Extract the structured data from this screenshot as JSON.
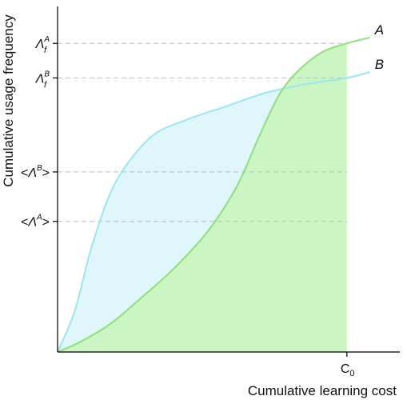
{
  "chart_data": {
    "type": "line",
    "xlabel": "Cumulative learning cost",
    "ylabel": "Cumulative usage frequency",
    "xlim": [
      0,
      1.1
    ],
    "ylim": [
      0,
      1.0
    ],
    "x_tick": {
      "label": "C0",
      "sub": "0",
      "value": 1.0
    },
    "y_ticks": [
      {
        "id": "lambda_f_A",
        "base": "Λ",
        "sub": "f",
        "sup": "A",
        "value": 0.893
      },
      {
        "id": "lambda_f_B",
        "base": "Λ",
        "sub": "f",
        "sup": "B",
        "value": 0.793
      },
      {
        "id": "mean_lambda_B",
        "prefix": "<",
        "base": "Λ",
        "sup": "B",
        "suffix": ">",
        "value": 0.521
      },
      {
        "id": "mean_lambda_A",
        "prefix": "<",
        "base": "Λ",
        "sup": "A",
        "suffix": ">",
        "value": 0.378
      }
    ],
    "series": [
      {
        "name": "A",
        "color": "#8ee07a",
        "fill": "#ccf5c4",
        "points": [
          [
            0.0,
            0.0
          ],
          [
            0.08,
            0.03
          ],
          [
            0.18,
            0.08
          ],
          [
            0.28,
            0.15
          ],
          [
            0.4,
            0.24
          ],
          [
            0.52,
            0.35
          ],
          [
            0.62,
            0.48
          ],
          [
            0.7,
            0.63
          ],
          [
            0.77,
            0.75
          ],
          [
            0.84,
            0.82
          ],
          [
            0.92,
            0.87
          ],
          [
            1.0,
            0.893
          ],
          [
            1.08,
            0.91
          ]
        ]
      },
      {
        "name": "B",
        "color": "#9be6f2",
        "fill": "#dff6fb",
        "points": [
          [
            0.0,
            0.0
          ],
          [
            0.06,
            0.12
          ],
          [
            0.12,
            0.31
          ],
          [
            0.2,
            0.49
          ],
          [
            0.32,
            0.62
          ],
          [
            0.44,
            0.67
          ],
          [
            0.58,
            0.71
          ],
          [
            0.72,
            0.75
          ],
          [
            0.86,
            0.775
          ],
          [
            1.0,
            0.793
          ],
          [
            1.08,
            0.81
          ]
        ]
      }
    ]
  }
}
